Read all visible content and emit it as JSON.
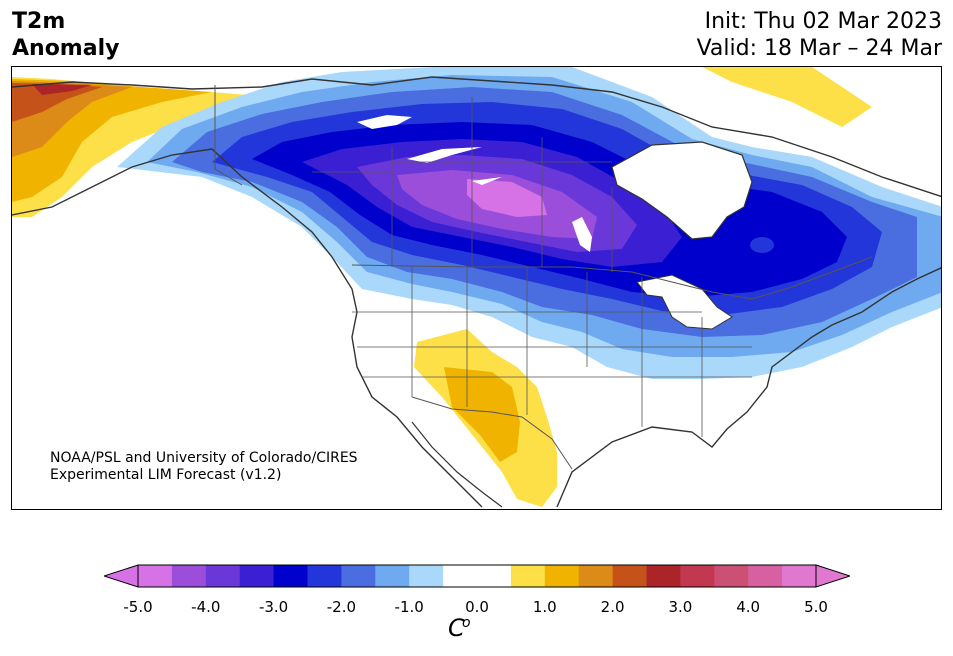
{
  "header": {
    "variable": "T2m",
    "quantity": "Anomaly",
    "init": "Init: Thu 02 Mar 2023",
    "valid": "Valid: 18 Mar – 24 Mar"
  },
  "credit": {
    "line1": "NOAA/PSL and University of Colorado/CIRES",
    "line2": "Experimental LIM Forecast (v1.2)"
  },
  "colorbar": {
    "unit_sup": "o",
    "unit": "C",
    "ticks": [
      "-5.0",
      "-4.0",
      "-3.0",
      "-2.0",
      "-1.0",
      "0.0",
      "1.0",
      "2.0",
      "3.0",
      "4.0",
      "5.0"
    ],
    "min": -5.0,
    "max": 5.0,
    "step": 0.5,
    "colors": [
      "#d672e6",
      "#9b4ed9",
      "#6a38d9",
      "#3a1fd3",
      "#0000cc",
      "#2336d9",
      "#4a6ee0",
      "#6faaf0",
      "#aad8fa",
      "#ffffff",
      "#ffffff",
      "#fde047",
      "#f0b400",
      "#dc8a18",
      "#c55218",
      "#aa2428",
      "#c23850",
      "#cc4f74",
      "#d660a0",
      "#e078d0"
    ],
    "under_color": "#d672e6",
    "over_color": "#e078d0"
  },
  "map": {
    "region": "North America",
    "palette": {
      "water_land": "#ffffff",
      "coast": "#333333",
      "borders": "#555555"
    }
  }
}
